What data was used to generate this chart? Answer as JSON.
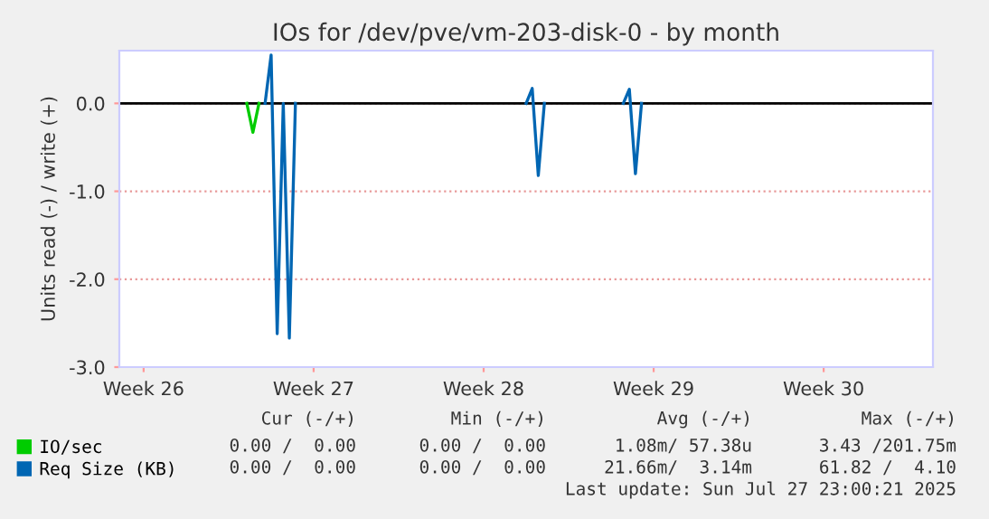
{
  "chart_data": {
    "type": "line",
    "title": "IOs for /dev/pve/vm-203-disk-0 - by month",
    "ylabel": "Units read (-) / write (+)",
    "categories": [
      null,
      null,
      null,
      null,
      "Week 26",
      null,
      null,
      null,
      null,
      null,
      null,
      null,
      null,
      null,
      null,
      null,
      null,
      null,
      null,
      null,
      null,
      null,
      null,
      null,
      null,
      null,
      null,
      null,
      null,
      null,
      null,
      null,
      "Week 27",
      null,
      null,
      null,
      null,
      null,
      null,
      null,
      null,
      null,
      null,
      null,
      null,
      null,
      null,
      null,
      null,
      null,
      null,
      null,
      null,
      null,
      null,
      null,
      null,
      null,
      null,
      null,
      "Week 28",
      null,
      null,
      null,
      null,
      null,
      null,
      null,
      null,
      null,
      null,
      null,
      null,
      null,
      null,
      null,
      null,
      null,
      null,
      null,
      null,
      null,
      null,
      null,
      null,
      null,
      null,
      null,
      "Week 29",
      null,
      null,
      null,
      null,
      null,
      null,
      null,
      null,
      null,
      null,
      null,
      null,
      null,
      null,
      null,
      null,
      null,
      null,
      null,
      null,
      null,
      null,
      null,
      null,
      null,
      null,
      null,
      "Week 30",
      null,
      null,
      null,
      null,
      null,
      null,
      null,
      null,
      null,
      null,
      null,
      null,
      null,
      null,
      null,
      null,
      null,
      null
    ],
    "series": [
      {
        "name": "IO/sec",
        "color": "#00cc00",
        "values": [
          null,
          null,
          null,
          null,
          null,
          null,
          null,
          null,
          null,
          null,
          null,
          null,
          null,
          null,
          null,
          null,
          null,
          null,
          null,
          null,
          null,
          0,
          -0.33,
          0,
          null,
          null,
          null,
          null,
          null,
          null,
          null,
          null,
          null,
          null,
          null,
          null,
          null,
          null,
          null,
          null,
          null,
          null,
          null,
          null,
          null,
          null,
          null,
          null,
          null,
          null,
          null,
          null,
          null,
          null,
          null,
          null,
          null,
          null,
          null,
          null,
          null,
          null,
          null,
          null,
          null,
          null,
          null,
          null,
          null,
          null,
          null,
          null,
          null,
          null,
          null,
          null,
          null,
          null,
          null,
          null,
          null,
          null,
          null,
          null,
          null,
          null,
          null,
          null,
          null,
          null,
          null,
          null,
          null,
          null,
          null,
          null,
          null,
          null,
          null,
          null,
          null,
          null,
          null,
          null,
          null,
          null,
          null,
          null,
          null,
          null,
          null,
          null,
          null,
          null,
          null,
          null,
          null,
          null,
          null,
          null,
          null,
          null,
          null,
          null,
          null,
          null,
          null,
          null,
          null,
          null,
          null,
          null,
          null,
          null,
          null
        ]
      },
      {
        "name": "Req Size (KB)",
        "color": "#0066b3",
        "values": [
          null,
          null,
          null,
          null,
          null,
          null,
          null,
          null,
          null,
          null,
          null,
          null,
          null,
          null,
          null,
          null,
          null,
          null,
          null,
          null,
          null,
          null,
          null,
          null,
          0,
          0.55,
          -2.62,
          0,
          -2.67,
          0,
          null,
          null,
          null,
          null,
          null,
          null,
          null,
          null,
          null,
          null,
          null,
          null,
          null,
          null,
          null,
          null,
          null,
          null,
          null,
          null,
          null,
          null,
          null,
          null,
          null,
          null,
          null,
          null,
          null,
          null,
          null,
          null,
          null,
          null,
          null,
          null,
          null,
          0,
          0.17,
          -0.82,
          0,
          null,
          null,
          null,
          null,
          null,
          null,
          null,
          null,
          null,
          null,
          null,
          null,
          0,
          0.16,
          -0.8,
          0,
          null,
          null,
          null,
          null,
          null,
          null,
          null,
          null,
          null,
          null,
          null,
          null,
          null,
          null,
          null,
          null,
          null,
          null,
          null,
          null,
          null,
          null,
          null,
          null,
          null,
          null,
          null,
          null,
          null,
          null,
          null,
          null,
          null,
          null,
          null,
          null,
          null,
          null,
          null,
          null,
          null,
          null,
          null,
          null,
          null,
          null,
          null,
          null
        ]
      }
    ],
    "ylim": [
      -3,
      0.6
    ],
    "yticks": [
      {
        "value": -3,
        "label": "-3.0"
      },
      {
        "value": -2,
        "label": "-2.0"
      },
      {
        "value": -1,
        "label": "-1.0"
      },
      {
        "value": 0,
        "label": "0.0"
      }
    ],
    "ref_lines": [
      {
        "axis": "y",
        "value": 0,
        "color": "#000000"
      }
    ],
    "grid": "y",
    "legend": "bottom left",
    "line_style": "solid",
    "marker": "none",
    "annotations": [
      "Cur (-/+)",
      "Min (-/+)",
      "Avg (-/+)",
      "Max (-/+)",
      "0.00 /  0.00",
      "0.00 /  0.00",
      "1.08m/ 57.38u",
      "3.43 /201.75m",
      "0.00 /  0.00",
      "0.00 /  0.00",
      "21.66m/  3.14m",
      "61.82 /  4.10",
      "Last update: Sun Jul 27 23:00:21 2025"
    ]
  }
}
